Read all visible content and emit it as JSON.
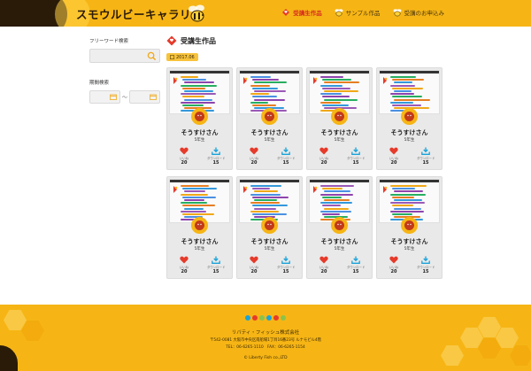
{
  "header": {
    "logo_text": "スモウルビーキャラリー",
    "nav": [
      {
        "label": "受講生作品",
        "icon": "heart-diamond-icon",
        "active": true
      },
      {
        "label": "サンプル作品",
        "icon": "bee-icon",
        "active": false
      },
      {
        "label": "受講のお申込み",
        "icon": "bee-icon",
        "active": false
      }
    ]
  },
  "sidebar": {
    "freeword_label": "フリーワード検索",
    "freeword_value": "",
    "period_label": "期間検索",
    "date_from": "",
    "date_to": "",
    "tilde": "〜"
  },
  "main": {
    "title": "受講生作品",
    "date_badge": "2017.06"
  },
  "cards": [
    {
      "name": "そうすけさん",
      "grade": "5年生",
      "like_label": "いいね",
      "likes": "20",
      "dl_label": "ダウンロード",
      "downloads": "15"
    },
    {
      "name": "そうすけさん",
      "grade": "5年生",
      "like_label": "いいね",
      "likes": "20",
      "dl_label": "ダウンロード",
      "downloads": "15"
    },
    {
      "name": "そうすけさん",
      "grade": "5年生",
      "like_label": "いいね",
      "likes": "20",
      "dl_label": "ダウンロード",
      "downloads": "15"
    },
    {
      "name": "そうすけさん",
      "grade": "5年生",
      "like_label": "いいね",
      "likes": "20",
      "dl_label": "ダウンロード",
      "downloads": "15"
    },
    {
      "name": "そうすけさん",
      "grade": "5年生",
      "like_label": "いいね",
      "likes": "20",
      "dl_label": "ダウンロード",
      "downloads": "15"
    },
    {
      "name": "そうすけさん",
      "grade": "5年生",
      "like_label": "いいね",
      "likes": "20",
      "dl_label": "ダウンロード",
      "downloads": "15"
    },
    {
      "name": "そうすけさん",
      "grade": "5年生",
      "like_label": "いいね",
      "likes": "20",
      "dl_label": "ダウンロード",
      "downloads": "15"
    },
    {
      "name": "そうすけさん",
      "grade": "5年生",
      "like_label": "いいね",
      "likes": "20",
      "dl_label": "ダウンロード",
      "downloads": "15"
    }
  ],
  "footer": {
    "logo": "rubyfish",
    "company": "リバティ・フィッシュ株式会社",
    "address": "〒542-0081 大阪市中央区南船場1丁目16番23号 ルナモビル4階",
    "tel": "TEL：06-6265-1110　FAX：06-6265-1154",
    "copyright": "© Liberty Fish co.,LTD"
  },
  "colors": {
    "brand_yellow": "#f6b515",
    "brand_dark": "#2a1a08",
    "heart_red": "#e63a2a",
    "download_blue": "#1aa3d9"
  }
}
